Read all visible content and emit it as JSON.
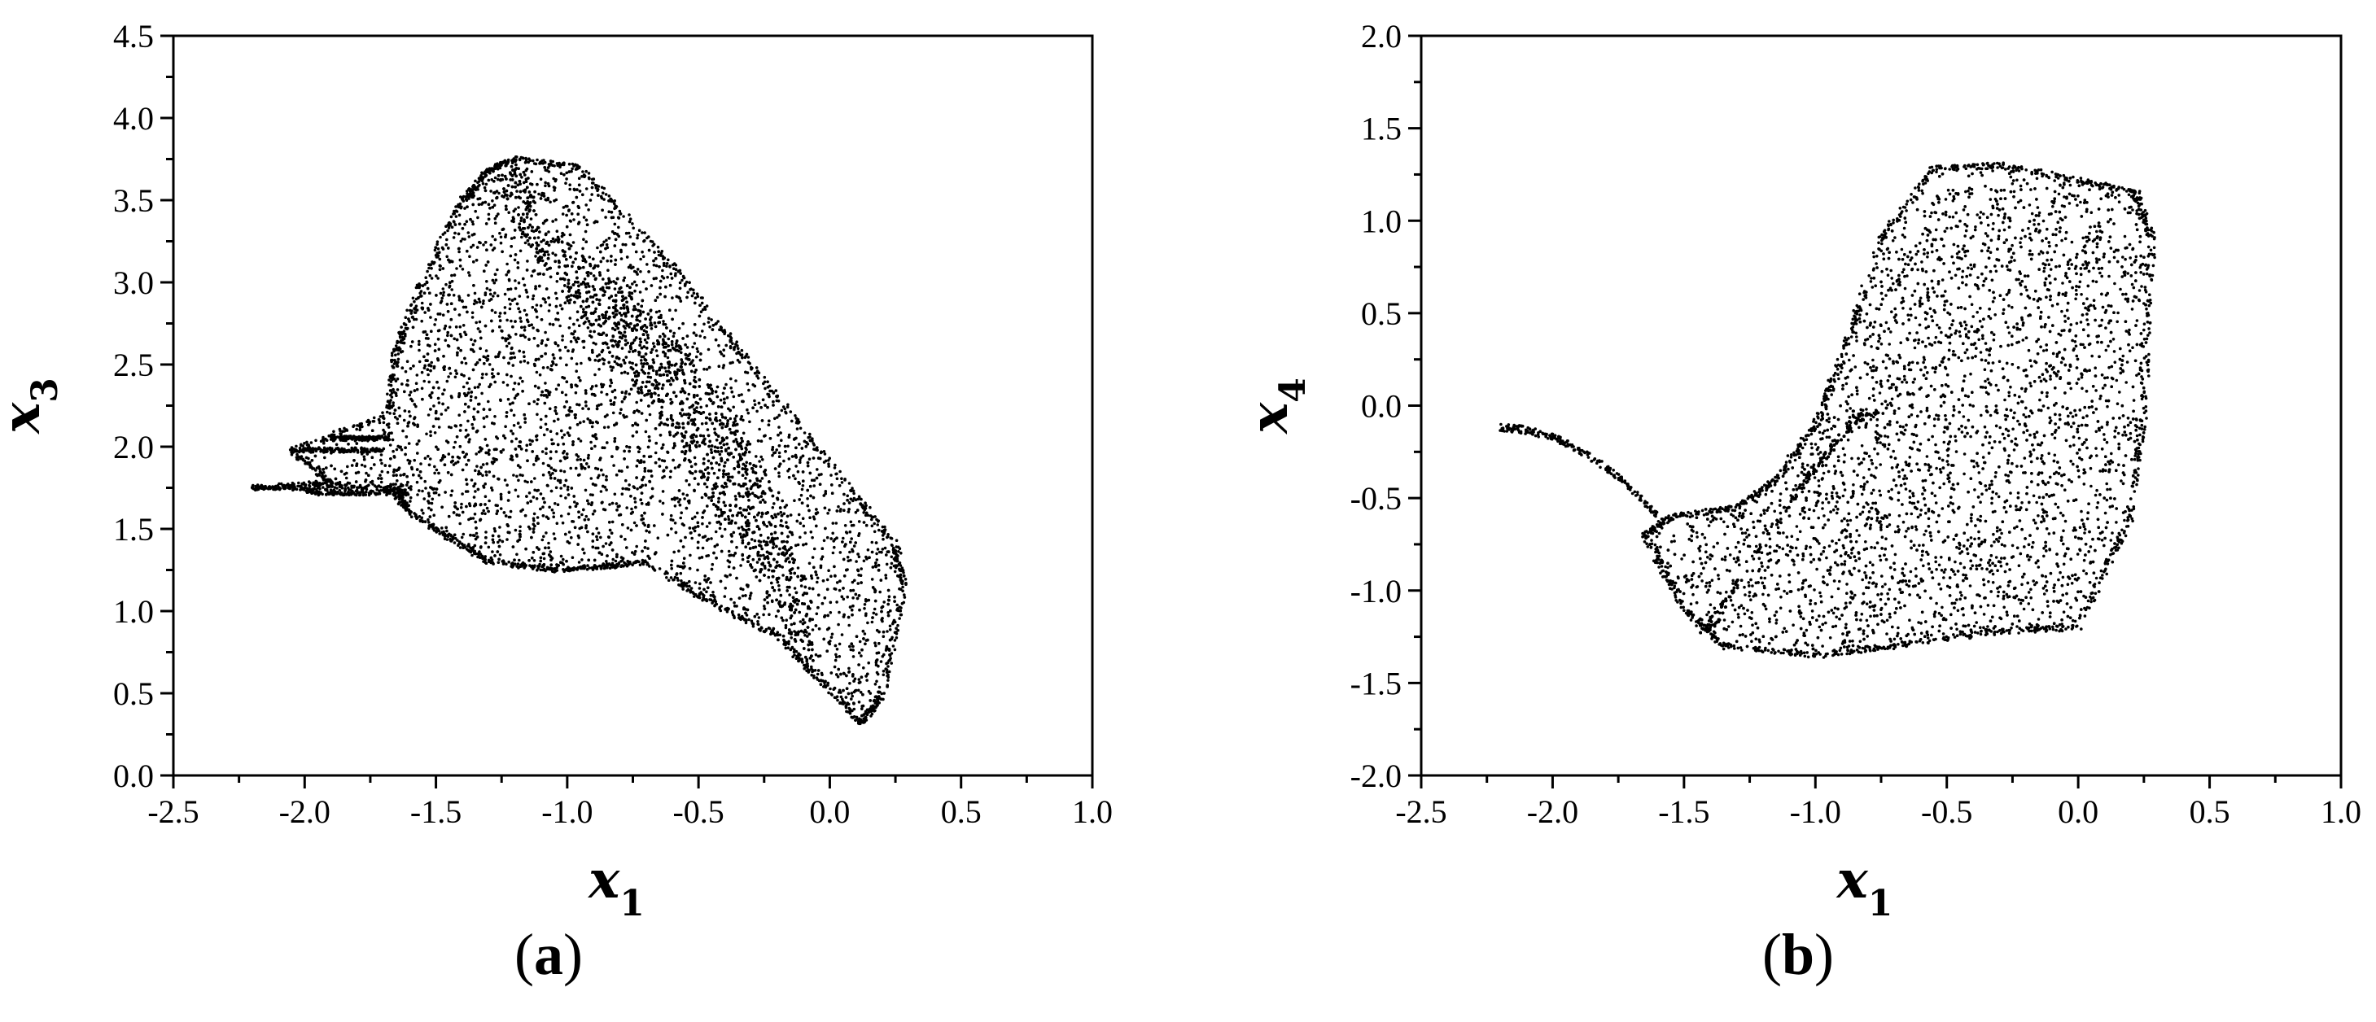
{
  "chart_data": [
    {
      "type": "scatter",
      "panel_label": "a",
      "xlabel": "x",
      "xlabel_sub": "1",
      "ylabel": "x",
      "ylabel_sub": "3",
      "xlim": [
        -2.5,
        1.0
      ],
      "ylim": [
        0.0,
        4.5
      ],
      "xticks": [
        "-2.5",
        "-2.0",
        "-1.5",
        "-1.0",
        "-0.5",
        "0.0",
        "0.5",
        "1.0"
      ],
      "yticks": [
        "0.0",
        "0.5",
        "1.0",
        "1.5",
        "2.0",
        "2.5",
        "3.0",
        "3.5",
        "4.0",
        "4.5"
      ],
      "grid": false,
      "marker_color": "#000000",
      "outline": [
        [
          -1.2,
          3.75
        ],
        [
          -0.95,
          3.7
        ],
        [
          -0.6,
          3.1
        ],
        [
          -0.3,
          2.5
        ],
        [
          0.0,
          1.9
        ],
        [
          0.25,
          1.4
        ],
        [
          0.28,
          1.15
        ],
        [
          0.2,
          0.5
        ],
        [
          0.12,
          0.32
        ],
        [
          -0.05,
          0.6
        ],
        [
          -0.2,
          0.85
        ],
        [
          -0.45,
          1.05
        ],
        [
          -0.7,
          1.3
        ],
        [
          -0.87,
          1.27
        ],
        [
          -1.05,
          1.25
        ],
        [
          -1.3,
          1.3
        ],
        [
          -1.45,
          1.45
        ],
        [
          -1.6,
          1.6
        ],
        [
          -1.68,
          1.78
        ],
        [
          -2.2,
          1.75
        ],
        [
          -1.9,
          1.78
        ],
        [
          -2.05,
          1.98
        ],
        [
          -1.68,
          2.2
        ],
        [
          -1.65,
          2.6
        ],
        [
          -1.55,
          3.0
        ],
        [
          -1.4,
          3.5
        ],
        [
          -1.3,
          3.68
        ]
      ],
      "dense_band": [
        [
          -1.3,
          3.6
        ],
        [
          -1.2,
          3.75
        ],
        [
          -1.05,
          3.3
        ],
        [
          -0.7,
          2.9
        ],
        [
          -0.4,
          2.3
        ],
        [
          -0.2,
          1.7
        ],
        [
          -0.08,
          1.1
        ],
        [
          -0.05,
          0.6
        ],
        [
          -0.2,
          1.0
        ],
        [
          -0.35,
          1.4
        ],
        [
          -0.55,
          1.9
        ],
        [
          -0.85,
          2.6
        ],
        [
          -1.1,
          3.1
        ],
        [
          -1.25,
          3.45
        ]
      ],
      "wings": [
        {
          "y": 1.75,
          "x_from": -2.2,
          "x_to": -1.6
        },
        {
          "y": 1.72,
          "x_from": -2.0,
          "x_to": -1.6
        },
        {
          "y": 1.98,
          "x_from": -2.05,
          "x_to": -1.7
        },
        {
          "y": 2.05,
          "x_from": -1.9,
          "x_to": -1.68
        }
      ]
    },
    {
      "type": "scatter",
      "panel_label": "b",
      "xlabel": "x",
      "xlabel_sub": "1",
      "ylabel": "x",
      "ylabel_sub": "4",
      "xlim": [
        -2.5,
        1.0
      ],
      "ylim": [
        -2.0,
        2.0
      ],
      "xticks": [
        "-2.5",
        "-2.0",
        "-1.5",
        "-1.0",
        "-0.5",
        "0.0",
        "0.5",
        "1.0"
      ],
      "yticks": [
        "-2.0",
        "-1.5",
        "-1.0",
        "-0.5",
        "0.0",
        "0.5",
        "1.0",
        "1.5",
        "2.0"
      ],
      "grid": false,
      "marker_color": "#000000",
      "outline": [
        [
          -0.9,
          0.25
        ],
        [
          -0.75,
          0.9
        ],
        [
          -0.55,
          1.28
        ],
        [
          -0.3,
          1.3
        ],
        [
          0.0,
          1.22
        ],
        [
          0.22,
          1.15
        ],
        [
          0.28,
          0.9
        ],
        [
          0.25,
          0.0
        ],
        [
          0.2,
          -0.6
        ],
        [
          0.0,
          -1.2
        ],
        [
          -0.3,
          -1.22
        ],
        [
          -0.7,
          -1.3
        ],
        [
          -1.0,
          -1.35
        ],
        [
          -1.35,
          -1.3
        ],
        [
          -1.5,
          -1.1
        ],
        [
          -1.65,
          -0.7
        ],
        [
          -1.55,
          -0.6
        ],
        [
          -1.3,
          -0.55
        ],
        [
          -1.15,
          -0.4
        ],
        [
          -1.0,
          -0.1
        ]
      ],
      "dense_band": [
        [
          -1.45,
          -1.25
        ],
        [
          -1.3,
          -0.95
        ],
        [
          -1.1,
          -0.55
        ],
        [
          -0.85,
          -0.1
        ],
        [
          -0.7,
          0.0
        ],
        [
          -0.85,
          -0.05
        ],
        [
          -1.05,
          -0.4
        ],
        [
          -1.25,
          -0.85
        ],
        [
          -1.38,
          -1.2
        ]
      ],
      "tail": {
        "from": [
          -2.2,
          -0.12
        ],
        "to": [
          -1.6,
          -0.6
        ]
      }
    }
  ]
}
